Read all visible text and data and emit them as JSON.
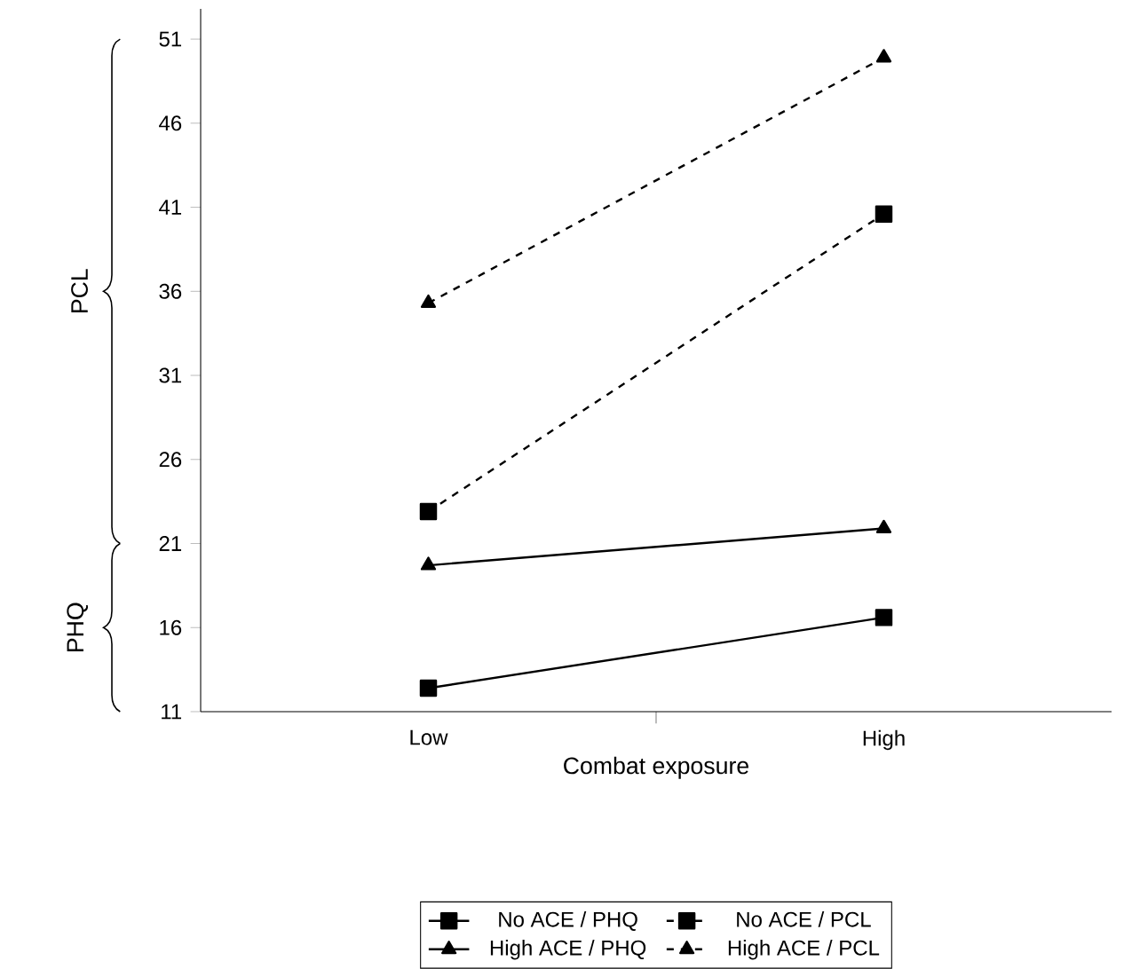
{
  "chart_data": {
    "type": "line",
    "xlabel": "Combat exposure",
    "categories": [
      "Low",
      "High"
    ],
    "series": [
      {
        "name": "No ACE / PHQ",
        "color": "#000000",
        "values": [
          12.4,
          16.6
        ],
        "marker": "square",
        "line_style": "solid"
      },
      {
        "name": "No ACE / PCL",
        "color": "#000000",
        "values": [
          22.9,
          40.6
        ],
        "marker": "square",
        "line_style": "dashed"
      },
      {
        "name": "High ACE / PHQ",
        "color": "#000000",
        "values": [
          19.7,
          21.9
        ],
        "marker": "triangle",
        "line_style": "solid"
      },
      {
        "name": "High ACE / PCL",
        "color": "#000000",
        "values": [
          35.3,
          49.9
        ],
        "marker": "triangle",
        "line_style": "dashed"
      }
    ],
    "ylim": [
      11,
      52.8
    ],
    "yticks": [
      11,
      16,
      21,
      26,
      31,
      36,
      41,
      46,
      51
    ],
    "grid": false,
    "legend": "bottom",
    "annotations": [
      "PHQ",
      "PCL"
    ]
  }
}
